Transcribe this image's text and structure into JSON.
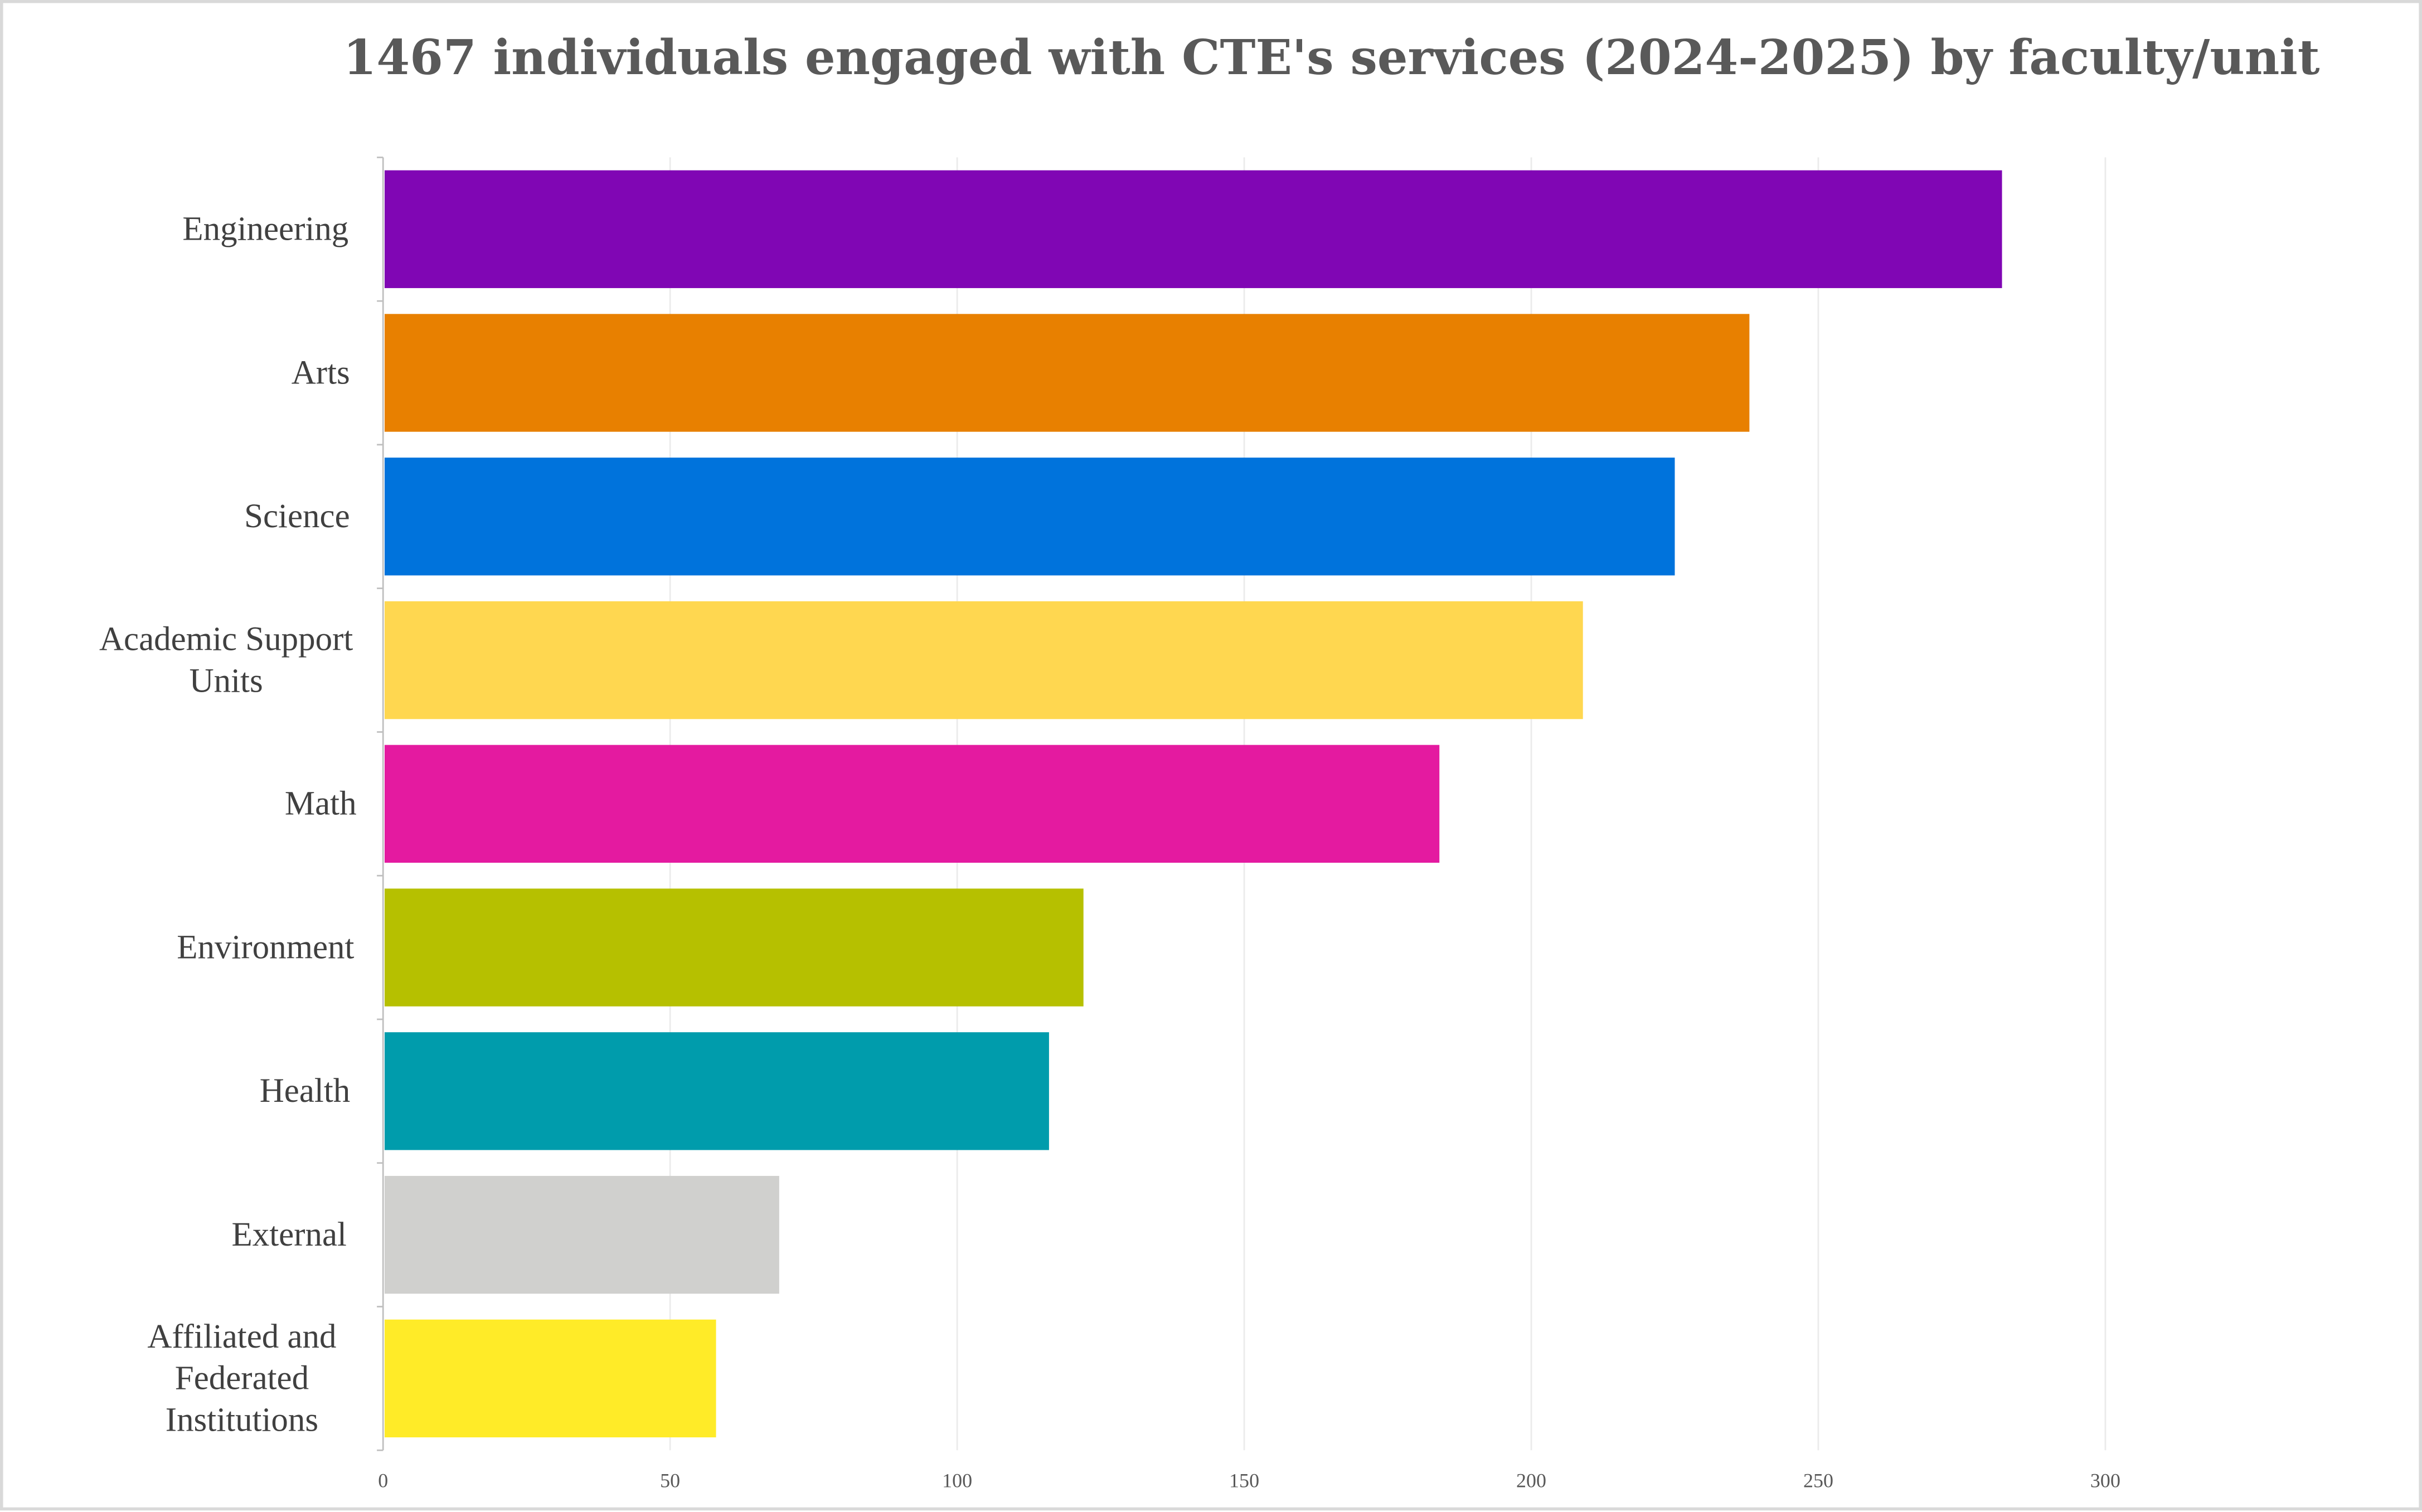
{
  "chart_data": {
    "type": "bar",
    "orientation": "horizontal",
    "title": "1467 individuals engaged with CTE's services (2024-2025) by faculty/unit",
    "xlabel": "",
    "ylabel": "",
    "categories": [
      "Engineering",
      "Arts",
      "Science",
      "Academic Support Units",
      "Math",
      "Environment",
      "Health",
      "External",
      "Affiliated and Federated Institutions"
    ],
    "category_lines": [
      [
        "Engineering"
      ],
      [
        "Arts"
      ],
      [
        "Science"
      ],
      [
        "Academic Support",
        "Units"
      ],
      [
        "Math"
      ],
      [
        "Environment"
      ],
      [
        "Health"
      ],
      [
        "External"
      ],
      [
        "Affiliated and",
        "Federated",
        "Institutions"
      ]
    ],
    "values": [
      282,
      238,
      225,
      209,
      184,
      122,
      116,
      69,
      58
    ],
    "colors": [
      "#8006b4",
      "#e88000",
      "#0073dc",
      "#ffd750",
      "#e41aa0",
      "#b6c000",
      "#009cac",
      "#d0d0ce",
      "#ffeb28"
    ],
    "xlim": [
      0,
      300
    ],
    "xticks": [
      "0",
      "50",
      "100",
      "150",
      "200",
      "250",
      "300"
    ],
    "grid": true,
    "legend": "none"
  }
}
